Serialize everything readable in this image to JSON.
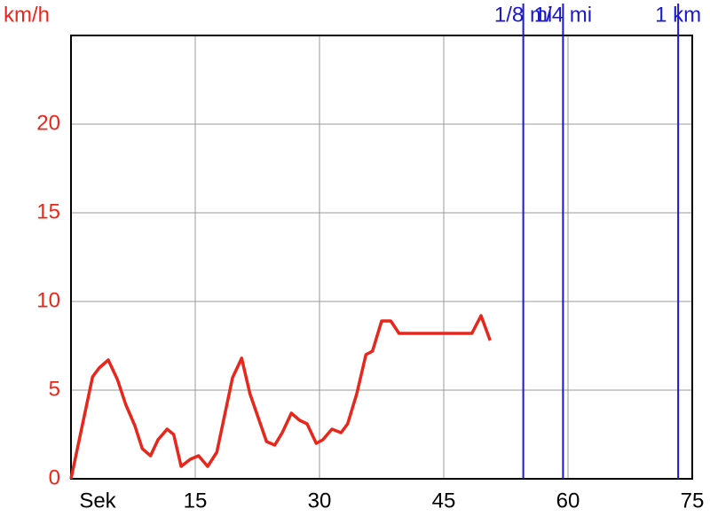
{
  "chart_data": {
    "type": "line",
    "y_label": "km/h",
    "xlim": [
      0,
      75
    ],
    "ylim": [
      0,
      25
    ],
    "xticks": [
      {
        "value": 0,
        "label": "Sek"
      },
      15,
      30,
      45,
      60,
      75
    ],
    "yticks": [
      0,
      5,
      10,
      15,
      20
    ],
    "grid": true,
    "series": [
      {
        "color": "#e8261b",
        "x": [
          0,
          2.6,
          3.4,
          4.5,
          5.6,
          6.6,
          7.7,
          8.6,
          9.6,
          10.5,
          11.6,
          12.4,
          13.3,
          14.4,
          15.4,
          16.5,
          17.6,
          19.5,
          20.6,
          21.6,
          23.6,
          24.6,
          25.5,
          26.6,
          27.6,
          28.5,
          29.6,
          30.4,
          31.5,
          32.6,
          33.4,
          34.5,
          35.6,
          36.4,
          37.5,
          38.6,
          39.6,
          48.4,
          49.5,
          50.6
        ],
        "values": [
          0,
          5.75,
          6.25,
          6.7,
          5.6,
          4.2,
          3.0,
          1.7,
          1.3,
          2.2,
          2.8,
          2.5,
          0.7,
          1.1,
          1.3,
          0.7,
          1.5,
          5.7,
          6.8,
          4.8,
          2.1,
          1.9,
          2.6,
          3.7,
          3.3,
          3.1,
          2.0,
          2.2,
          2.8,
          2.6,
          3.1,
          4.8,
          7.0,
          7.2,
          8.9,
          8.9,
          8.2,
          8.2,
          9.2,
          7.8
        ]
      }
    ],
    "markers": [
      {
        "label": "1/8 mi",
        "x": 54.6,
        "color": "#1a1acc"
      },
      {
        "label": "1/4 mi",
        "x": 59.4,
        "color": "#1a1acc"
      },
      {
        "label": "1 km",
        "x": 73.3,
        "color": "#1a1acc"
      }
    ]
  }
}
